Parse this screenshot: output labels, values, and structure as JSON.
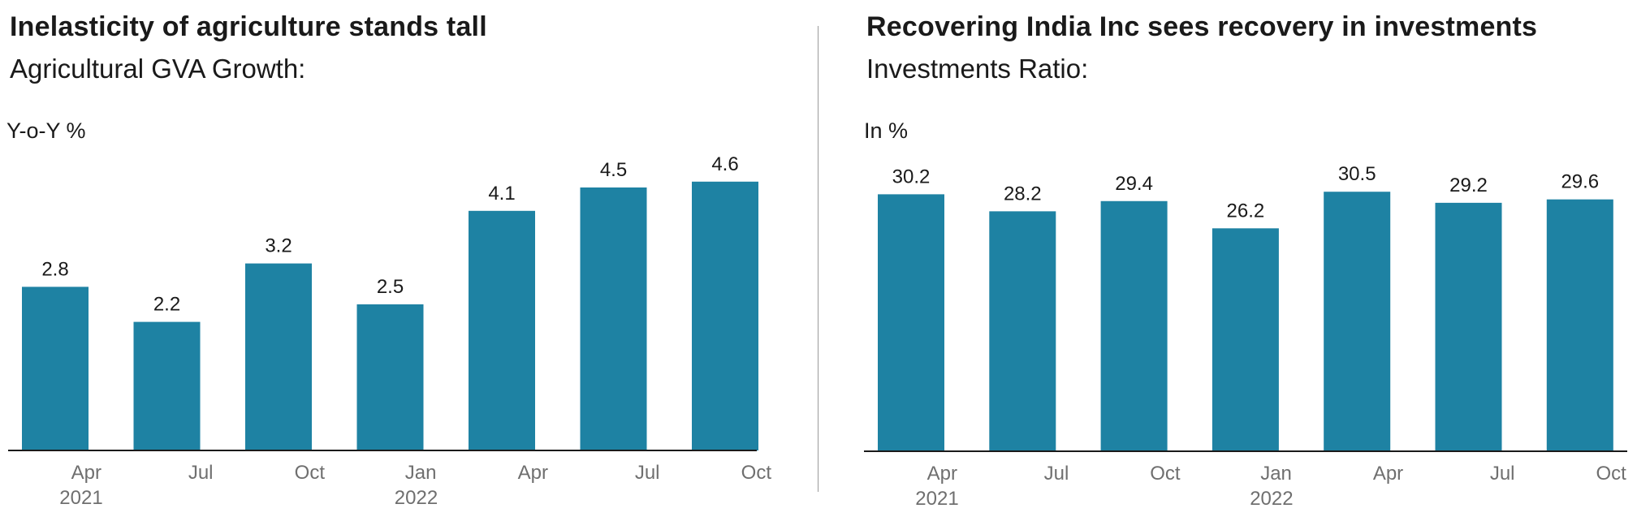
{
  "divider": true,
  "charts": [
    {
      "id": "left",
      "title": "Inelasticity of agriculture stands tall",
      "subtitle": "Agricultural GVA Growth:",
      "unit": "Y-o-Y %",
      "chart_data": {
        "type": "bar",
        "categories": [
          "Apr",
          "Jul",
          "Oct",
          "Jan",
          "Apr",
          "Jul",
          "Oct"
        ],
        "year_labels": [
          "2021",
          "",
          "",
          "2022",
          "",
          "",
          ""
        ],
        "values": [
          2.8,
          2.2,
          3.2,
          2.5,
          4.1,
          4.5,
          4.6
        ],
        "ylabel": "Y-o-Y %",
        "ylim": [
          0,
          5
        ],
        "grid": false,
        "bar_color": "#1e82a3",
        "axis_color": "#1a1a1a"
      }
    },
    {
      "id": "right",
      "title": "Recovering India Inc sees recovery in investments",
      "subtitle": "Investments Ratio:",
      "unit": "In %",
      "chart_data": {
        "type": "bar",
        "categories": [
          "Apr",
          "Jul",
          "Oct",
          "Jan",
          "Apr",
          "Jul",
          "Oct"
        ],
        "year_labels": [
          "2021",
          "",
          "",
          "2022",
          "",
          "",
          ""
        ],
        "values": [
          30.2,
          28.2,
          29.4,
          26.2,
          30.5,
          29.2,
          29.6
        ],
        "ylabel": "In %",
        "ylim": [
          0,
          31
        ],
        "grid": false,
        "bar_color": "#1e82a3",
        "axis_color": "#1a1a1a"
      }
    }
  ]
}
